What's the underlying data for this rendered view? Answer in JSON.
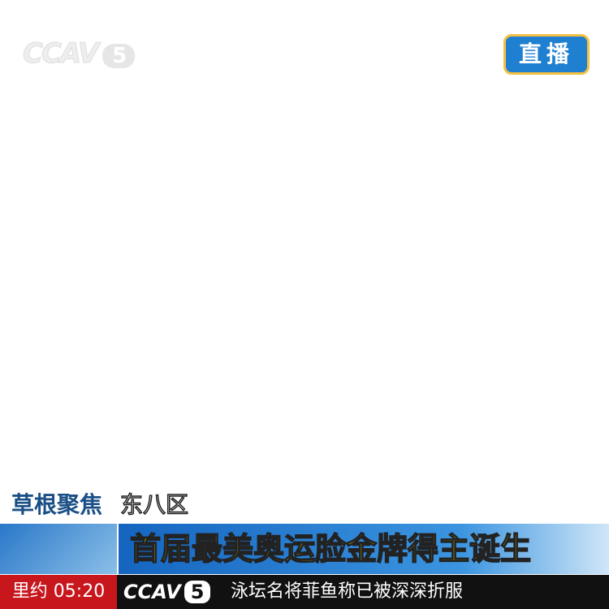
{
  "logo": {
    "text": "CCAV",
    "channel": "5"
  },
  "live_badge": "直播",
  "program": {
    "name": "草根聚焦",
    "segment": "东八区"
  },
  "headline": "首届最美奥运脸金牌得主诞生",
  "ticker": {
    "location_time": "里约 05:20",
    "logo_text": "CCAV",
    "logo_channel": "5",
    "text": "泳坛名将菲鱼称已被深深折服"
  }
}
